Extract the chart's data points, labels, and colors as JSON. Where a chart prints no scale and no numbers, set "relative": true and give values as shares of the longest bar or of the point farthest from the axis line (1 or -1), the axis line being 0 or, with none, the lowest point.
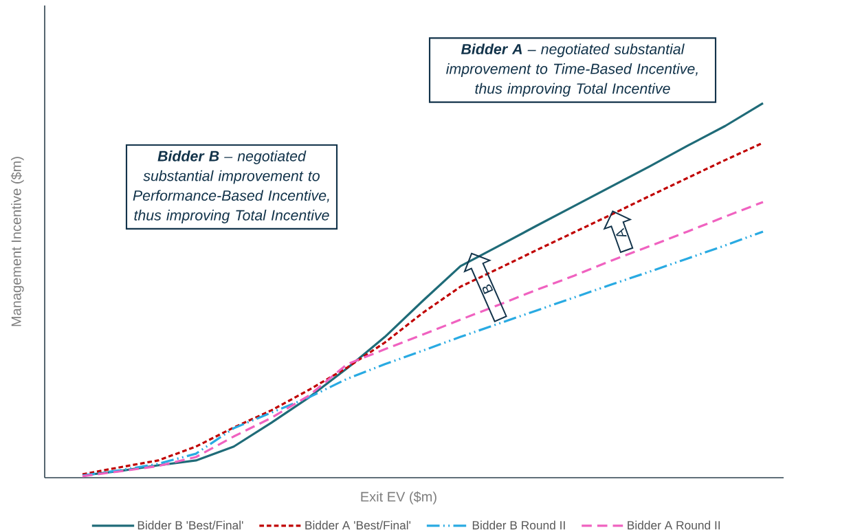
{
  "chart_data": {
    "type": "line",
    "relative": true,
    "xlabel": "Exit EV ($m)",
    "ylabel": "Management Incentive ($m)",
    "legend": "bottom",
    "categories": [
      null,
      null,
      null,
      null,
      null,
      null,
      null,
      null,
      null,
      null,
      null,
      null,
      null,
      null,
      null,
      null,
      null,
      null,
      null
    ],
    "series": [
      {
        "name": "Bidder B 'Best/Final'",
        "color": "#1f6b78",
        "line_style": "solid",
        "values": [
          0.006,
          0.018,
          0.033,
          0.046,
          0.083,
          0.147,
          0.215,
          0.292,
          0.376,
          0.472,
          0.565,
          0.618,
          0.672,
          0.725,
          0.778,
          0.831,
          0.886,
          0.939,
          1.0
        ]
      },
      {
        "name": "Bidder A 'Best/Final'",
        "color": "#c00000",
        "line_style": "dashed",
        "values": [
          0.009,
          0.028,
          0.046,
          0.083,
          0.134,
          0.18,
          0.235,
          0.294,
          0.361,
          0.44,
          0.51,
          0.558,
          0.607,
          0.655,
          0.703,
          0.752,
          0.8,
          0.848,
          0.894
        ]
      },
      {
        "name": "Bidder B Round II",
        "color": "#29aae2",
        "line_style": "dashed",
        "values": [
          0.006,
          0.02,
          0.037,
          0.064,
          0.132,
          0.174,
          0.215,
          0.264,
          0.303,
          0.339,
          0.376,
          0.411,
          0.446,
          0.481,
          0.516,
          0.55,
          0.585,
          0.62,
          0.657
        ]
      },
      {
        "name": "Bidder A Round II",
        "color": "#f062c0",
        "line_style": "dashed",
        "values": [
          0.004,
          0.017,
          0.031,
          0.055,
          0.11,
          0.16,
          0.22,
          0.303,
          0.343,
          0.382,
          0.422,
          0.461,
          0.501,
          0.539,
          0.58,
          0.618,
          0.657,
          0.697,
          0.736
        ]
      }
    ],
    "annotations": [
      "**Bidder B** – negotiated substantial improvement to Performance-Based Incentive, thus improving Total Incentive",
      "**Bidder A** – negotiated substantial improvement to Time-Based Incentive, thus improving Total Incentive",
      "B",
      "A"
    ]
  }
}
